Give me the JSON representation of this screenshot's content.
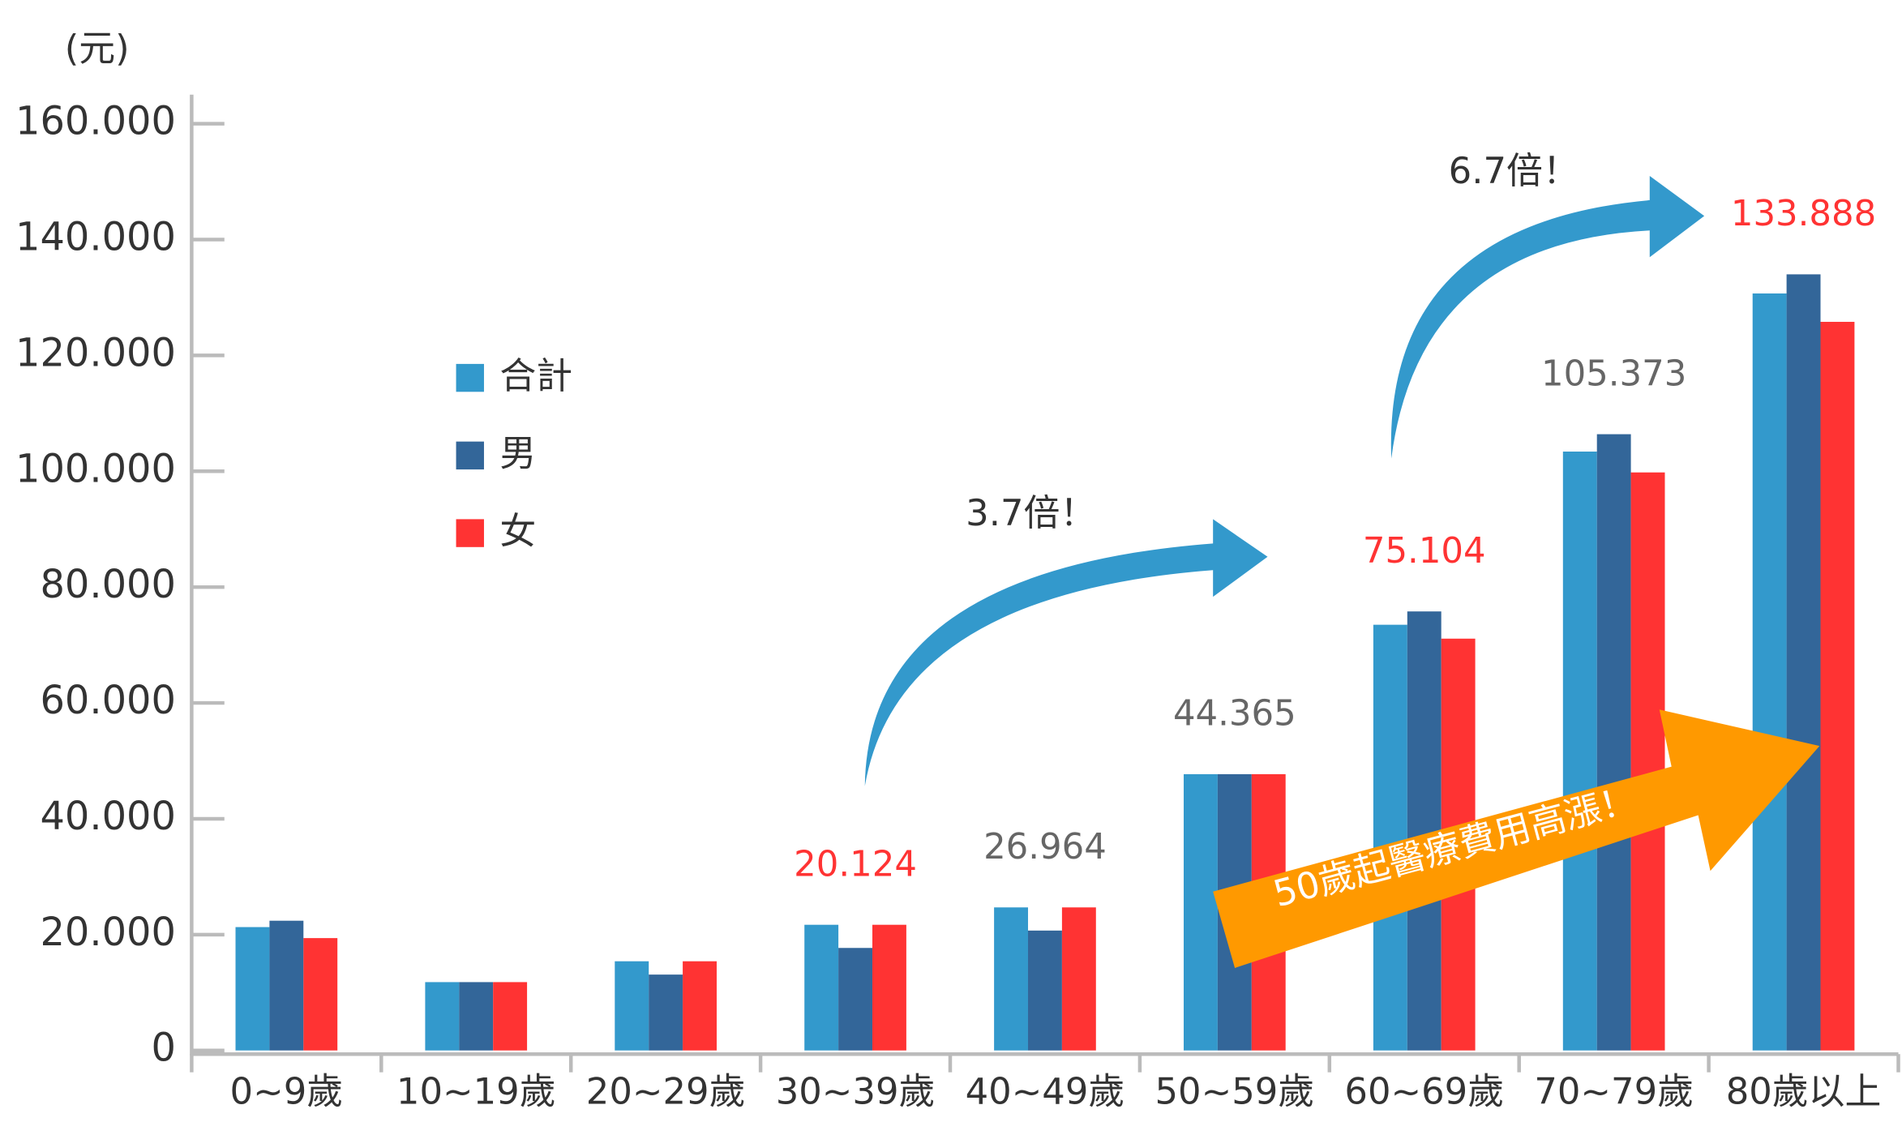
{
  "chart_data": {
    "type": "bar",
    "y_label": "(元)",
    "categories": [
      "0~9歲",
      "10~19歲",
      "20~29歲",
      "30~39歲",
      "40~49歲",
      "50~59歲",
      "60~69歲",
      "70~79歲",
      "80歲以上"
    ],
    "series": [
      {
        "name": "合計",
        "color": "#3399cc",
        "values": [
          21300,
          11800,
          15400,
          21700,
          24700,
          47700,
          73500,
          103400,
          130700
        ]
      },
      {
        "name": "男",
        "color": "#336699",
        "values": [
          22400,
          11800,
          13100,
          17700,
          20700,
          47700,
          75800,
          106400,
          134000
        ]
      },
      {
        "name": "女",
        "color": "#ff3333",
        "values": [
          19400,
          11800,
          15400,
          21700,
          24700,
          47700,
          71100,
          99800,
          125800
        ]
      }
    ],
    "group_labels": [
      null,
      null,
      null,
      "20.124",
      "26.964",
      "44.365",
      "75.104",
      "105.373",
      "133.888"
    ],
    "group_label_colors": [
      null,
      null,
      null,
      "#ff3333",
      "#666666",
      "#666666",
      "#ff3333",
      "#666666",
      "#ff3333"
    ],
    "annotations": [
      "3.7倍！",
      "6.7倍！",
      "50歲起醫療費用高漲！"
    ],
    "ylim": [
      0,
      160000
    ],
    "yticks": [
      0,
      {
        "value": 20000,
        "label": "20.000"
      },
      {
        "value": 40000,
        "label": "40.000"
      },
      {
        "value": 60000,
        "label": "60.000"
      },
      {
        "value": 80000,
        "label": "80.000"
      },
      {
        "value": 100000,
        "label": "100.000"
      },
      {
        "value": 120000,
        "label": "120.000"
      },
      {
        "value": 140000,
        "label": "140.000"
      },
      {
        "value": 160000,
        "label": "160.000"
      }
    ],
    "legend": "upper left"
  }
}
